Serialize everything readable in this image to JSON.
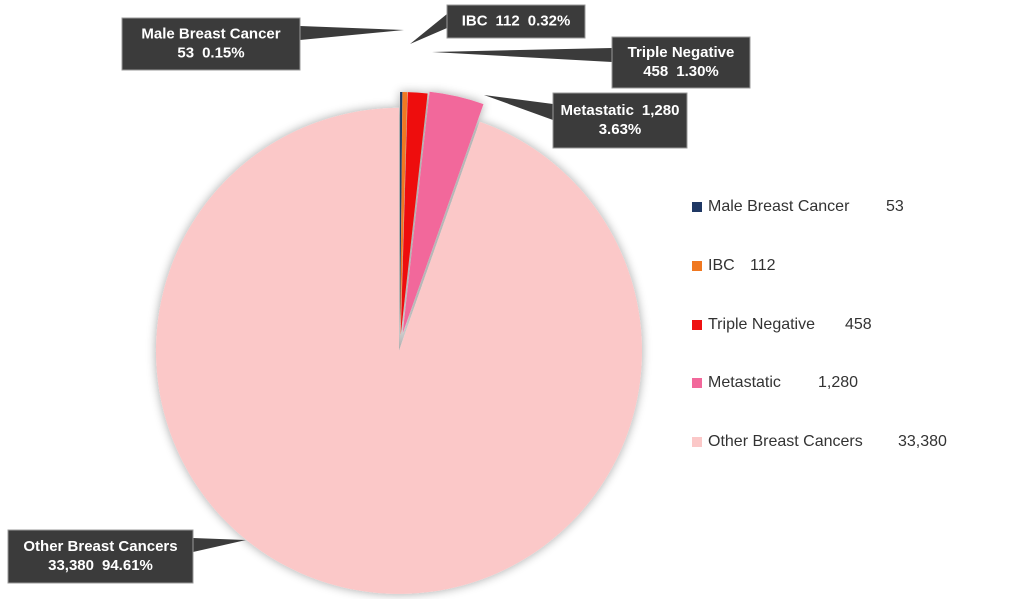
{
  "chart_data": {
    "type": "pie",
    "categories": [
      "Male Breast Cancer",
      "IBC",
      "Triple Negative",
      "Metastatic",
      "Other Breast Cancers"
    ],
    "values": [
      53,
      112,
      458,
      1280,
      33380
    ],
    "value_labels": [
      "53",
      "112",
      "458",
      "1,280",
      "33,380"
    ],
    "percents": [
      0.15,
      0.32,
      1.3,
      3.63,
      94.61
    ],
    "percent_labels": [
      "0.15%",
      "0.32%",
      "1.30%",
      "3.63%",
      "94.61%"
    ],
    "colors": [
      "#1f3864",
      "#f07820",
      "#ee1111",
      "#f2689b",
      "#fbc8c8"
    ],
    "legend": "right"
  }
}
